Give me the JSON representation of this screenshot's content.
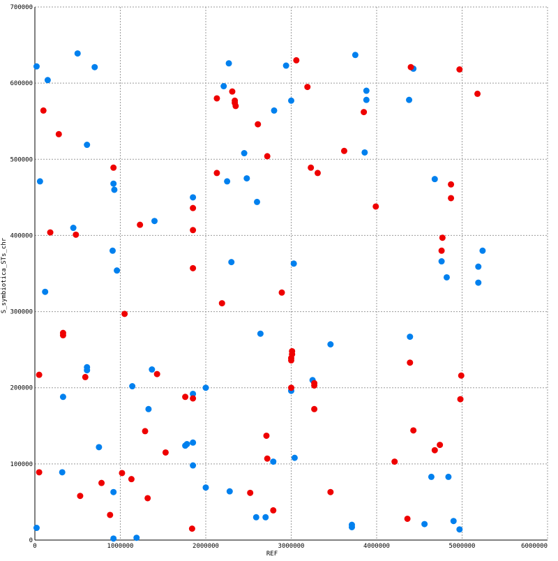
{
  "chart_data": {
    "type": "scatter",
    "title": "",
    "xlabel": "REF",
    "ylabel": "S_symbiotica_STs_chr",
    "xlim": [
      0,
      6000000
    ],
    "ylim": [
      0,
      700000
    ],
    "x_ticks": [
      0,
      1000000,
      2000000,
      3000000,
      4000000,
      5000000,
      6000000
    ],
    "y_ticks": [
      0,
      100000,
      200000,
      300000,
      400000,
      500000,
      600000,
      700000
    ],
    "grid": true,
    "legend": "none",
    "series": [
      {
        "color": "#0080ee",
        "points": [
          [
            20000,
            622000
          ],
          [
            60000,
            471000
          ],
          [
            150000,
            604000
          ],
          [
            500000,
            639000
          ],
          [
            700000,
            621000
          ],
          [
            120000,
            326000
          ],
          [
            450000,
            410000
          ],
          [
            610000,
            519000
          ],
          [
            920000,
            468000
          ],
          [
            930000,
            460000
          ],
          [
            910000,
            380000
          ],
          [
            960000,
            354000
          ],
          [
            1400000,
            419000
          ],
          [
            1850000,
            450000
          ],
          [
            2210000,
            596000
          ],
          [
            2270000,
            626000
          ],
          [
            2450000,
            508000
          ],
          [
            2480000,
            475000
          ],
          [
            2600000,
            444000
          ],
          [
            2250000,
            471000
          ],
          [
            2300000,
            365000
          ],
          [
            2640000,
            271000
          ],
          [
            2800000,
            564000
          ],
          [
            2940000,
            623000
          ],
          [
            3000000,
            577000
          ],
          [
            3000000,
            196000
          ],
          [
            3030000,
            363000
          ],
          [
            3460000,
            257000
          ],
          [
            3250000,
            210000
          ],
          [
            3750000,
            637000
          ],
          [
            3880000,
            590000
          ],
          [
            3880000,
            578000
          ],
          [
            3860000,
            509000
          ],
          [
            4380000,
            578000
          ],
          [
            4430000,
            619000
          ],
          [
            4390000,
            267000
          ],
          [
            4680000,
            474000
          ],
          [
            4760000,
            366000
          ],
          [
            4820000,
            345000
          ],
          [
            5190000,
            338000
          ],
          [
            5190000,
            359000
          ],
          [
            5240000,
            380000
          ],
          [
            330000,
            188000
          ],
          [
            610000,
            227000
          ],
          [
            610000,
            223000
          ],
          [
            1140000,
            202000
          ],
          [
            1370000,
            224000
          ],
          [
            1330000,
            172000
          ],
          [
            750000,
            122000
          ],
          [
            320000,
            89000
          ],
          [
            920000,
            63000
          ],
          [
            920000,
            2000
          ],
          [
            1190000,
            3000
          ],
          [
            1760000,
            124000
          ],
          [
            1780000,
            126000
          ],
          [
            1850000,
            128000
          ],
          [
            1850000,
            192000
          ],
          [
            1850000,
            98000
          ],
          [
            2000000,
            200000
          ],
          [
            2000000,
            69000
          ],
          [
            2280000,
            64000
          ],
          [
            2590000,
            30000
          ],
          [
            2700000,
            30000
          ],
          [
            2790000,
            103000
          ],
          [
            3040000,
            108000
          ],
          [
            3710000,
            20000
          ],
          [
            3710000,
            17000
          ],
          [
            4560000,
            21000
          ],
          [
            4640000,
            83000
          ],
          [
            4840000,
            83000
          ],
          [
            4900000,
            25000
          ],
          [
            4970000,
            14000
          ],
          [
            20000,
            16000
          ]
        ]
      },
      {
        "color": "#ee0000",
        "points": [
          [
            100000,
            564000
          ],
          [
            280000,
            533000
          ],
          [
            180000,
            404000
          ],
          [
            480000,
            401000
          ],
          [
            920000,
            489000
          ],
          [
            1230000,
            414000
          ],
          [
            1850000,
            436000
          ],
          [
            1850000,
            407000
          ],
          [
            1850000,
            357000
          ],
          [
            2130000,
            580000
          ],
          [
            2310000,
            589000
          ],
          [
            2340000,
            577000
          ],
          [
            2340000,
            574000
          ],
          [
            2350000,
            570000
          ],
          [
            2610000,
            546000
          ],
          [
            2720000,
            504000
          ],
          [
            2130000,
            482000
          ],
          [
            2190000,
            311000
          ],
          [
            2890000,
            325000
          ],
          [
            3060000,
            630000
          ],
          [
            3190000,
            595000
          ],
          [
            3230000,
            489000
          ],
          [
            3310000,
            482000
          ],
          [
            3620000,
            511000
          ],
          [
            3850000,
            562000
          ],
          [
            3990000,
            438000
          ],
          [
            4400000,
            621000
          ],
          [
            4970000,
            618000
          ],
          [
            5180000,
            586000
          ],
          [
            4870000,
            467000
          ],
          [
            4870000,
            449000
          ],
          [
            4770000,
            397000
          ],
          [
            4760000,
            380000
          ],
          [
            330000,
            272000
          ],
          [
            330000,
            269000
          ],
          [
            1050000,
            297000
          ],
          [
            590000,
            214000
          ],
          [
            50000,
            217000
          ],
          [
            1430000,
            218000
          ],
          [
            1760000,
            188000
          ],
          [
            1850000,
            186000
          ],
          [
            2710000,
            137000
          ],
          [
            3010000,
            248000
          ],
          [
            3010000,
            244000
          ],
          [
            3000000,
            239000
          ],
          [
            3000000,
            236000
          ],
          [
            3000000,
            200000
          ],
          [
            3270000,
            206000
          ],
          [
            3270000,
            203000
          ],
          [
            3270000,
            172000
          ],
          [
            4390000,
            233000
          ],
          [
            4990000,
            216000
          ],
          [
            4980000,
            185000
          ],
          [
            4430000,
            144000
          ],
          [
            4740000,
            125000
          ],
          [
            4680000,
            118000
          ],
          [
            4210000,
            103000
          ],
          [
            50000,
            89000
          ],
          [
            780000,
            75000
          ],
          [
            1020000,
            88000
          ],
          [
            1130000,
            80000
          ],
          [
            1290000,
            143000
          ],
          [
            1320000,
            55000
          ],
          [
            1530000,
            115000
          ],
          [
            530000,
            58000
          ],
          [
            880000,
            33000
          ],
          [
            1840000,
            15000
          ],
          [
            2520000,
            62000
          ],
          [
            2720000,
            107000
          ],
          [
            2790000,
            39000
          ],
          [
            3460000,
            63000
          ],
          [
            4360000,
            28000
          ]
        ]
      }
    ]
  }
}
